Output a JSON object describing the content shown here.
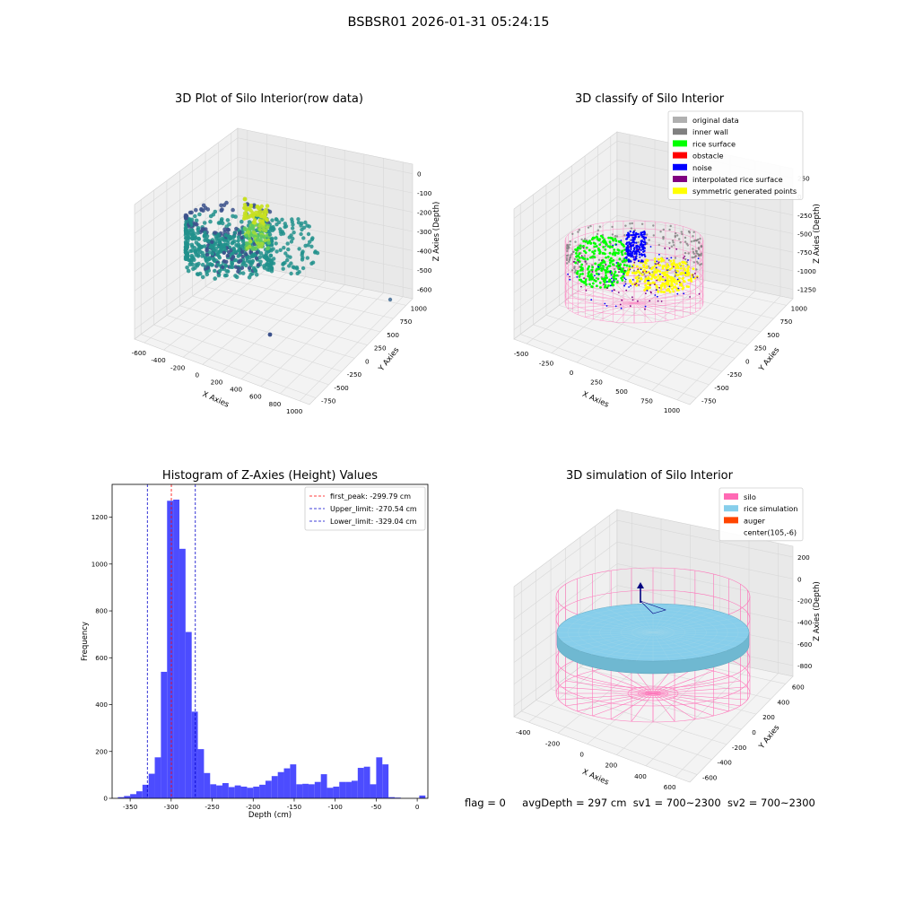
{
  "figure": {
    "suptitle": "BSBSR01 2026-01-31 05:24:15",
    "footer": {
      "flag": "flag = 0",
      "avg_depth": "avgDepth = 297 cm",
      "sv1": "sv1 = 700~2300",
      "sv2": "sv2 = 700~2300"
    }
  },
  "chart_data": [
    {
      "id": "raw",
      "type": "scatter",
      "title": "3D Plot of Silo Interior(row data)",
      "xlabel": "X Axies",
      "ylabel": "Y Axies",
      "zlabel": "Z Axies (Depth)",
      "x_ticks": [
        "-600",
        "-400",
        "-200",
        "0",
        "200",
        "400",
        "600",
        "800",
        "1000"
      ],
      "y_ticks": [
        "-750",
        "-500",
        "-250",
        "0",
        "250",
        "500",
        "750",
        "1000"
      ],
      "z_ticks": [
        "0",
        "-100",
        "-200",
        "-300",
        "-400",
        "-500",
        "-600"
      ],
      "colors": {
        "low": "#3b518b",
        "mid": "#21918c",
        "high": "#c8e020"
      }
    },
    {
      "id": "classify",
      "type": "scatter",
      "title": "3D classify of Silo Interior",
      "xlabel": "X Axies",
      "ylabel": "Y Axies",
      "zlabel": "Z Axies (Depth)",
      "x_ticks": [
        "-500",
        "-250",
        "0",
        "250",
        "500",
        "750",
        "1000"
      ],
      "y_ticks": [
        "-750",
        "-500",
        "-250",
        "0",
        "250",
        "500",
        "750",
        "1000"
      ],
      "z_ticks": [
        "250",
        "0",
        "-250",
        "-500",
        "-750",
        "-1000",
        "-1250"
      ],
      "legend": [
        {
          "label": "original data",
          "color": "#b0b0b0"
        },
        {
          "label": "inner wall",
          "color": "#808080"
        },
        {
          "label": "rice surface",
          "color": "#00ff00"
        },
        {
          "label": "obstacle",
          "color": "#ff0000"
        },
        {
          "label": "noise",
          "color": "#0000ff"
        },
        {
          "label": "interpolated rice surface",
          "color": "#800080"
        },
        {
          "label": "symmetric generated points",
          "color": "#ffff00"
        }
      ],
      "legend_position": "top-right",
      "wire_color": "#ff69b4"
    },
    {
      "id": "hist",
      "type": "bar",
      "title": "Histogram of Z-Axies (Height) Values",
      "xlabel": "Depth (cm)",
      "ylabel": "Frequency",
      "xlim": [
        -372,
        13
      ],
      "ylim": [
        0,
        1340
      ],
      "x_ticks": [
        -350,
        -300,
        -250,
        -200,
        -150,
        -100,
        -50,
        0
      ],
      "y_ticks": [
        0,
        200,
        400,
        600,
        800,
        1000,
        1200
      ],
      "bin_width": 7.5,
      "bin_start": -365,
      "values": [
        5,
        10,
        18,
        30,
        58,
        105,
        175,
        540,
        1270,
        1275,
        1065,
        710,
        370,
        210,
        108,
        60,
        55,
        65,
        48,
        55,
        50,
        45,
        50,
        58,
        75,
        95,
        112,
        128,
        145,
        60,
        62,
        60,
        70,
        103,
        45,
        50,
        70,
        70,
        75,
        130,
        135,
        60,
        175,
        145,
        5,
        3,
        0,
        0,
        0,
        12
      ],
      "bar_color": "#4c4cff",
      "vlines": [
        {
          "label": "first_peak: -299.79 cm",
          "x": -299.79,
          "color": "#ff0000"
        },
        {
          "label": "Upper_limit: -270.54 cm",
          "x": -270.54,
          "color": "#0000cc"
        },
        {
          "label": "Lower_limit: -329.04 cm",
          "x": -329.04,
          "color": "#0000cc"
        }
      ],
      "legend_position": "top-right"
    },
    {
      "id": "sim",
      "type": "scatter",
      "title": "3D simulation of Silo Interior",
      "xlabel": "X Axies",
      "ylabel": "Y Axies",
      "zlabel": "Z Axies (Depth)",
      "x_ticks": [
        "-400",
        "-200",
        "0",
        "200",
        "400",
        "600"
      ],
      "y_ticks": [
        "-600",
        "-400",
        "-200",
        "0",
        "200",
        "400",
        "600"
      ],
      "z_ticks": [
        "200",
        "0",
        "-200",
        "-400",
        "-600",
        "-800"
      ],
      "legend": [
        {
          "label": "silo",
          "color": "#ff69b4"
        },
        {
          "label": "rice simulation",
          "color": "#87ceeb"
        },
        {
          "label": "auger",
          "color": "#ff4500"
        },
        {
          "label": "center(105,-6)",
          "color": ""
        }
      ],
      "legend_position": "top-right"
    }
  ]
}
